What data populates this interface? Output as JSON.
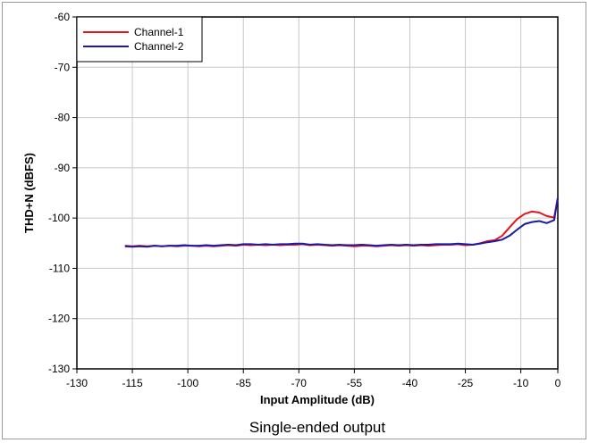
{
  "chart_data": {
    "type": "line",
    "title": "",
    "xlabel": "Input Amplitude (dB)",
    "ylabel": "THD+N (dBFS)",
    "caption": "Single-ended output",
    "xlim": [
      -130,
      0
    ],
    "ylim": [
      -130,
      -60
    ],
    "xticks": [
      -130,
      -115,
      -100,
      -85,
      -70,
      -55,
      -40,
      -25,
      -10,
      0
    ],
    "yticks": [
      -60,
      -70,
      -80,
      -90,
      -100,
      -110,
      -120,
      -130
    ],
    "x_tick_labels": [
      "-130",
      "-115",
      "-100",
      "-85",
      "-70",
      "-55",
      "-40",
      "-25",
      "-10",
      "0"
    ],
    "y_tick_labels": [
      "-60",
      "-70",
      "-80",
      "-90",
      "-100",
      "-110",
      "-120",
      "-130"
    ],
    "grid": true,
    "legend_position": "top-left",
    "series": [
      {
        "name": "Channel-1",
        "color": "#e8141b",
        "x": [
          -117,
          -115,
          -113,
          -111,
          -109,
          -107,
          -105,
          -103,
          -101,
          -99,
          -97,
          -95,
          -93,
          -91,
          -89,
          -87,
          -85,
          -83,
          -81,
          -79,
          -77,
          -75,
          -73,
          -71,
          -69,
          -67,
          -65,
          -63,
          -61,
          -59,
          -57,
          -55,
          -53,
          -51,
          -49,
          -47,
          -45,
          -43,
          -41,
          -39,
          -37,
          -35,
          -33,
          -31,
          -29,
          -27,
          -25,
          -23,
          -21,
          -19,
          -17,
          -15,
          -13,
          -11,
          -9,
          -7,
          -5,
          -3,
          -1,
          0
        ],
        "y": [
          -105.5,
          -105.6,
          -105.5,
          -105.6,
          -105.5,
          -105.6,
          -105.5,
          -105.6,
          -105.5,
          -105.5,
          -105.6,
          -105.5,
          -105.6,
          -105.5,
          -105.4,
          -105.5,
          -105.3,
          -105.4,
          -105.3,
          -105.4,
          -105.3,
          -105.4,
          -105.3,
          -105.3,
          -105.2,
          -105.4,
          -105.3,
          -105.4,
          -105.5,
          -105.4,
          -105.5,
          -105.6,
          -105.5,
          -105.5,
          -105.6,
          -105.5,
          -105.4,
          -105.5,
          -105.4,
          -105.5,
          -105.4,
          -105.5,
          -105.4,
          -105.3,
          -105.3,
          -105.2,
          -105.4,
          -105.3,
          -105.0,
          -104.6,
          -104.4,
          -103.5,
          -101.8,
          -100.2,
          -99.2,
          -98.7,
          -98.9,
          -99.6,
          -99.9,
          -96.0
        ]
      },
      {
        "name": "Channel-2",
        "color": "#1a1aa8",
        "x": [
          -117,
          -115,
          -113,
          -111,
          -109,
          -107,
          -105,
          -103,
          -101,
          -99,
          -97,
          -95,
          -93,
          -91,
          -89,
          -87,
          -85,
          -83,
          -81,
          -79,
          -77,
          -75,
          -73,
          -71,
          -69,
          -67,
          -65,
          -63,
          -61,
          -59,
          -57,
          -55,
          -53,
          -51,
          -49,
          -47,
          -45,
          -43,
          -41,
          -39,
          -37,
          -35,
          -33,
          -31,
          -29,
          -27,
          -25,
          -23,
          -21,
          -19,
          -17,
          -15,
          -13,
          -11,
          -9,
          -7,
          -5,
          -3,
          -1,
          0
        ],
        "y": [
          -105.6,
          -105.7,
          -105.6,
          -105.7,
          -105.5,
          -105.6,
          -105.5,
          -105.5,
          -105.4,
          -105.5,
          -105.5,
          -105.4,
          -105.5,
          -105.4,
          -105.3,
          -105.4,
          -105.2,
          -105.2,
          -105.3,
          -105.2,
          -105.3,
          -105.2,
          -105.2,
          -105.1,
          -105.1,
          -105.3,
          -105.2,
          -105.3,
          -105.4,
          -105.3,
          -105.4,
          -105.4,
          -105.3,
          -105.4,
          -105.5,
          -105.4,
          -105.3,
          -105.4,
          -105.3,
          -105.4,
          -105.3,
          -105.3,
          -105.2,
          -105.2,
          -105.2,
          -105.1,
          -105.2,
          -105.3,
          -105.1,
          -104.8,
          -104.6,
          -104.3,
          -103.5,
          -102.3,
          -101.2,
          -100.8,
          -100.6,
          -101.0,
          -100.4,
          -96.0
        ]
      }
    ]
  }
}
